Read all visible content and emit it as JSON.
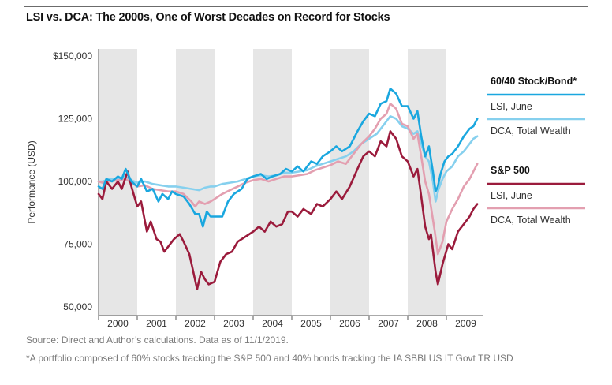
{
  "title": "LSI vs. DCA: The 2000s, One of Worst Decades on Record for Stocks",
  "footnotes": {
    "source": "Source: Direct and Author’s calculations. Data as of 11/1/2019.",
    "note": "*A portfolio composed of 60% stocks tracking the S&P 500 and 40% bonds tracking the IA SBBI US IT Govt TR USD"
  },
  "colors": {
    "lsi_6040": "#1aa7df",
    "dca_6040": "#86d0ee",
    "lsi_sp500": "#9b1b3c",
    "dca_sp500": "#e39fb0",
    "year_band": "#e6e6e6"
  },
  "legend": {
    "groups": [
      {
        "heading": "60/40 Stock/Bond*",
        "items": [
          {
            "label": "LSI, June",
            "series": "lsi_6040"
          },
          {
            "label": "DCA, Total Wealth",
            "series": "dca_6040"
          }
        ]
      },
      {
        "heading": "S&P 500",
        "items": [
          {
            "label": "LSI, June",
            "series": "lsi_sp500"
          },
          {
            "label": "DCA, Total Wealth",
            "series": "dca_sp500"
          }
        ]
      }
    ]
  },
  "chart_data": {
    "type": "line",
    "title": "LSI vs. DCA: The 2000s, One of Worst Decades on Record for Stocks",
    "ylabel": "Performance (USD)",
    "xlabel": "",
    "yticks": [
      50000,
      75000,
      100000,
      125000,
      150000
    ],
    "ytick_labels": [
      "50,000",
      "75,000",
      "100,000",
      "125,000",
      "$150,000"
    ],
    "xticks": [
      "2000",
      "2001",
      "2002",
      "2003",
      "2004",
      "2005",
      "2006",
      "2007",
      "2008",
      "2009"
    ],
    "xlim": [
      2000,
      2009.85
    ],
    "ylim": [
      45000,
      152000
    ],
    "alternating_year_bands": true,
    "series": [
      {
        "key": "lsi_6040",
        "legend_group": "60/40 Stock/Bond*",
        "legend_label": "LSI, June",
        "points": [
          [
            2000.0,
            98000
          ],
          [
            2000.1,
            97000
          ],
          [
            2000.2,
            101000
          ],
          [
            2000.35,
            100000
          ],
          [
            2000.5,
            102000
          ],
          [
            2000.6,
            101000
          ],
          [
            2000.7,
            105000
          ],
          [
            2000.85,
            100000
          ],
          [
            2001.0,
            98000
          ],
          [
            2001.1,
            101000
          ],
          [
            2001.25,
            96000
          ],
          [
            2001.4,
            97000
          ],
          [
            2001.55,
            92000
          ],
          [
            2001.65,
            95000
          ],
          [
            2001.8,
            93000
          ],
          [
            2001.9,
            96000
          ],
          [
            2002.0,
            95000
          ],
          [
            2002.2,
            94000
          ],
          [
            2002.35,
            91000
          ],
          [
            2002.5,
            87000
          ],
          [
            2002.6,
            87000
          ],
          [
            2002.7,
            82000
          ],
          [
            2002.8,
            88000
          ],
          [
            2002.9,
            86000
          ],
          [
            2003.0,
            86000
          ],
          [
            2003.2,
            86000
          ],
          [
            2003.35,
            92000
          ],
          [
            2003.5,
            95000
          ],
          [
            2003.7,
            97000
          ],
          [
            2003.85,
            101000
          ],
          [
            2004.0,
            102000
          ],
          [
            2004.2,
            103000
          ],
          [
            2004.35,
            101000
          ],
          [
            2004.5,
            102000
          ],
          [
            2004.7,
            103000
          ],
          [
            2004.85,
            105000
          ],
          [
            2005.0,
            104000
          ],
          [
            2005.15,
            106000
          ],
          [
            2005.3,
            104000
          ],
          [
            2005.5,
            108000
          ],
          [
            2005.65,
            107000
          ],
          [
            2005.8,
            110000
          ],
          [
            2006.0,
            112000
          ],
          [
            2006.15,
            114000
          ],
          [
            2006.3,
            112000
          ],
          [
            2006.5,
            114000
          ],
          [
            2006.7,
            120000
          ],
          [
            2006.85,
            124000
          ],
          [
            2007.0,
            127000
          ],
          [
            2007.15,
            126000
          ],
          [
            2007.3,
            131000
          ],
          [
            2007.45,
            132000
          ],
          [
            2007.55,
            137000
          ],
          [
            2007.7,
            135000
          ],
          [
            2007.85,
            130000
          ],
          [
            2008.0,
            130000
          ],
          [
            2008.15,
            125000
          ],
          [
            2008.25,
            128000
          ],
          [
            2008.35,
            118000
          ],
          [
            2008.45,
            110000
          ],
          [
            2008.55,
            114000
          ],
          [
            2008.65,
            104000
          ],
          [
            2008.72,
            96000
          ],
          [
            2008.78,
            98000
          ],
          [
            2008.85,
            103000
          ],
          [
            2008.95,
            108000
          ],
          [
            2009.05,
            110000
          ],
          [
            2009.15,
            111000
          ],
          [
            2009.3,
            114000
          ],
          [
            2009.45,
            118000
          ],
          [
            2009.6,
            121000
          ],
          [
            2009.7,
            122000
          ],
          [
            2009.8,
            125000
          ]
        ]
      },
      {
        "key": "dca_6040",
        "legend_group": "60/40 Stock/Bond*",
        "legend_label": "DCA, Total Wealth",
        "points": [
          [
            2000.0,
            100000
          ],
          [
            2000.1,
            100000
          ],
          [
            2000.3,
            101000
          ],
          [
            2000.5,
            101000
          ],
          [
            2000.7,
            102000
          ],
          [
            2000.85,
            100500
          ],
          [
            2001.0,
            99500
          ],
          [
            2001.2,
            100000
          ],
          [
            2001.4,
            99000
          ],
          [
            2001.6,
            98500
          ],
          [
            2001.8,
            98000
          ],
          [
            2002.0,
            98000
          ],
          [
            2002.2,
            97500
          ],
          [
            2002.4,
            97000
          ],
          [
            2002.6,
            96500
          ],
          [
            2002.75,
            97500
          ],
          [
            2002.9,
            98000
          ],
          [
            2003.0,
            98000
          ],
          [
            2003.2,
            99000
          ],
          [
            2003.4,
            99500
          ],
          [
            2003.6,
            100000
          ],
          [
            2003.8,
            101000
          ],
          [
            2004.0,
            102000
          ],
          [
            2004.2,
            102500
          ],
          [
            2004.4,
            102000
          ],
          [
            2004.6,
            102500
          ],
          [
            2004.8,
            103500
          ],
          [
            2005.0,
            103500
          ],
          [
            2005.2,
            104000
          ],
          [
            2005.4,
            104500
          ],
          [
            2005.6,
            106000
          ],
          [
            2005.8,
            107000
          ],
          [
            2006.0,
            108000
          ],
          [
            2006.2,
            109000
          ],
          [
            2006.4,
            110000
          ],
          [
            2006.6,
            112000
          ],
          [
            2006.8,
            115000
          ],
          [
            2007.0,
            117000
          ],
          [
            2007.2,
            119000
          ],
          [
            2007.4,
            123000
          ],
          [
            2007.55,
            126000
          ],
          [
            2007.7,
            125000
          ],
          [
            2007.85,
            122000
          ],
          [
            2008.0,
            121000
          ],
          [
            2008.15,
            119000
          ],
          [
            2008.25,
            120000
          ],
          [
            2008.35,
            115000
          ],
          [
            2008.45,
            110000
          ],
          [
            2008.55,
            108000
          ],
          [
            2008.65,
            100000
          ],
          [
            2008.72,
            92000
          ],
          [
            2008.8,
            97000
          ],
          [
            2008.9,
            101000
          ],
          [
            2009.0,
            104000
          ],
          [
            2009.15,
            106000
          ],
          [
            2009.3,
            110000
          ],
          [
            2009.45,
            112000
          ],
          [
            2009.6,
            115000
          ],
          [
            2009.7,
            117000
          ],
          [
            2009.8,
            118000
          ]
        ]
      },
      {
        "key": "lsi_sp500",
        "legend_group": "S&P 500",
        "legend_label": "LSI, June",
        "points": [
          [
            2000.0,
            95000
          ],
          [
            2000.1,
            93000
          ],
          [
            2000.2,
            100000
          ],
          [
            2000.35,
            97000
          ],
          [
            2000.5,
            100000
          ],
          [
            2000.6,
            97000
          ],
          [
            2000.75,
            104000
          ],
          [
            2000.85,
            98000
          ],
          [
            2001.0,
            90000
          ],
          [
            2001.1,
            92000
          ],
          [
            2001.25,
            80000
          ],
          [
            2001.35,
            84000
          ],
          [
            2001.5,
            77000
          ],
          [
            2001.6,
            76000
          ],
          [
            2001.7,
            72000
          ],
          [
            2001.8,
            74000
          ],
          [
            2001.95,
            77000
          ],
          [
            2002.1,
            79000
          ],
          [
            2002.2,
            76000
          ],
          [
            2002.35,
            71000
          ],
          [
            2002.45,
            64000
          ],
          [
            2002.55,
            57000
          ],
          [
            2002.65,
            64000
          ],
          [
            2002.75,
            61000
          ],
          [
            2002.85,
            59000
          ],
          [
            2003.0,
            60000
          ],
          [
            2003.15,
            68000
          ],
          [
            2003.3,
            71000
          ],
          [
            2003.45,
            72000
          ],
          [
            2003.6,
            76000
          ],
          [
            2003.8,
            78000
          ],
          [
            2004.0,
            80000
          ],
          [
            2004.15,
            82000
          ],
          [
            2004.3,
            80000
          ],
          [
            2004.45,
            84000
          ],
          [
            2004.6,
            82000
          ],
          [
            2004.75,
            83000
          ],
          [
            2004.9,
            88000
          ],
          [
            2005.0,
            88000
          ],
          [
            2005.15,
            86000
          ],
          [
            2005.3,
            89000
          ],
          [
            2005.5,
            87000
          ],
          [
            2005.65,
            91000
          ],
          [
            2005.8,
            90000
          ],
          [
            2006.0,
            93000
          ],
          [
            2006.15,
            96000
          ],
          [
            2006.3,
            93000
          ],
          [
            2006.5,
            98000
          ],
          [
            2006.7,
            105000
          ],
          [
            2006.85,
            110000
          ],
          [
            2007.0,
            112000
          ],
          [
            2007.15,
            110000
          ],
          [
            2007.3,
            116000
          ],
          [
            2007.45,
            114000
          ],
          [
            2007.55,
            120000
          ],
          [
            2007.7,
            117000
          ],
          [
            2007.85,
            110000
          ],
          [
            2008.0,
            108000
          ],
          [
            2008.15,
            102000
          ],
          [
            2008.25,
            105000
          ],
          [
            2008.35,
            94000
          ],
          [
            2008.45,
            82000
          ],
          [
            2008.55,
            77000
          ],
          [
            2008.6,
            79000
          ],
          [
            2008.72,
            64000
          ],
          [
            2008.78,
            59000
          ],
          [
            2008.9,
            67000
          ],
          [
            2009.05,
            75000
          ],
          [
            2009.15,
            73000
          ],
          [
            2009.3,
            80000
          ],
          [
            2009.45,
            83000
          ],
          [
            2009.6,
            86000
          ],
          [
            2009.7,
            89000
          ],
          [
            2009.8,
            91000
          ]
        ]
      },
      {
        "key": "dca_sp500",
        "legend_group": "S&P 500",
        "legend_label": "DCA, Total Wealth",
        "points": [
          [
            2000.0,
            100000
          ],
          [
            2000.1,
            99500
          ],
          [
            2000.3,
            100000
          ],
          [
            2000.5,
            100500
          ],
          [
            2000.7,
            101000
          ],
          [
            2000.85,
            99500
          ],
          [
            2001.0,
            98000
          ],
          [
            2001.2,
            98500
          ],
          [
            2001.4,
            97000
          ],
          [
            2001.6,
            96500
          ],
          [
            2001.8,
            96000
          ],
          [
            2002.0,
            96000
          ],
          [
            2002.2,
            95000
          ],
          [
            2002.4,
            92000
          ],
          [
            2002.5,
            90000
          ],
          [
            2002.6,
            92000
          ],
          [
            2002.75,
            91000
          ],
          [
            2002.9,
            92000
          ],
          [
            2003.0,
            93000
          ],
          [
            2003.2,
            95000
          ],
          [
            2003.4,
            96500
          ],
          [
            2003.6,
            98000
          ],
          [
            2003.8,
            99500
          ],
          [
            2004.0,
            100500
          ],
          [
            2004.2,
            101000
          ],
          [
            2004.4,
            100000
          ],
          [
            2004.6,
            101000
          ],
          [
            2004.8,
            102000
          ],
          [
            2005.0,
            102000
          ],
          [
            2005.2,
            102500
          ],
          [
            2005.4,
            103000
          ],
          [
            2005.6,
            104500
          ],
          [
            2005.8,
            105500
          ],
          [
            2006.0,
            106500
          ],
          [
            2006.2,
            108000
          ],
          [
            2006.4,
            107000
          ],
          [
            2006.6,
            111000
          ],
          [
            2006.8,
            115000
          ],
          [
            2007.0,
            118000
          ],
          [
            2007.15,
            121000
          ],
          [
            2007.3,
            125000
          ],
          [
            2007.45,
            127000
          ],
          [
            2007.55,
            131000
          ],
          [
            2007.7,
            129000
          ],
          [
            2007.85,
            123000
          ],
          [
            2008.0,
            122000
          ],
          [
            2008.15,
            117000
          ],
          [
            2008.25,
            119000
          ],
          [
            2008.35,
            110000
          ],
          [
            2008.45,
            100000
          ],
          [
            2008.55,
            95000
          ],
          [
            2008.6,
            90000
          ],
          [
            2008.7,
            80000
          ],
          [
            2008.78,
            71000
          ],
          [
            2008.9,
            76000
          ],
          [
            2009.0,
            84000
          ],
          [
            2009.15,
            89000
          ],
          [
            2009.3,
            93000
          ],
          [
            2009.45,
            98000
          ],
          [
            2009.6,
            101000
          ],
          [
            2009.7,
            104000
          ],
          [
            2009.8,
            107000
          ]
        ]
      }
    ]
  }
}
